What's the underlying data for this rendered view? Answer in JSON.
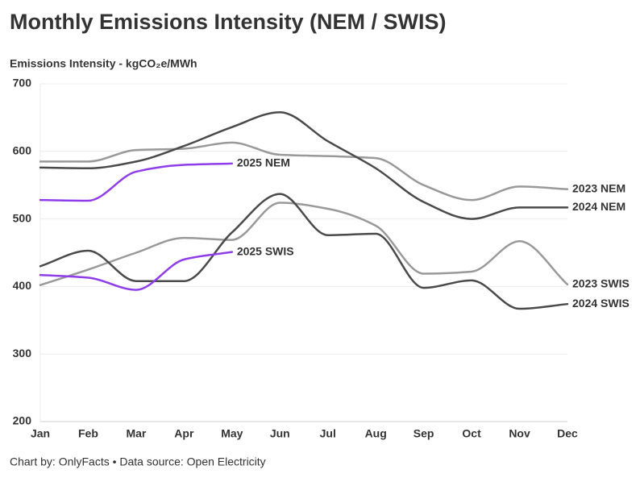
{
  "chart_data": {
    "type": "line",
    "title": "Monthly Emissions Intensity (NEM / SWIS)",
    "y_axis_label": "Emissions Intensity - kgCO₂e/MWh",
    "footer": "Chart by: OnlyFacts • Data source: Open Electricity",
    "categories": [
      "Jan",
      "Feb",
      "Mar",
      "Apr",
      "May",
      "Jun",
      "Jul",
      "Aug",
      "Sep",
      "Oct",
      "Nov",
      "Dec"
    ],
    "ylim": [
      200,
      700
    ],
    "yticks": [
      200,
      300,
      400,
      500,
      600,
      700
    ],
    "grid": true,
    "series": [
      {
        "name": "2023 NEM",
        "color": "#999999",
        "values": [
          585,
          585,
          602,
          604,
          613,
          595,
          593,
          590,
          550,
          528,
          548,
          544
        ]
      },
      {
        "name": "2024 NEM",
        "color": "#4a4a4a",
        "values": [
          576,
          575,
          585,
          608,
          636,
          658,
          615,
          575,
          525,
          500,
          517,
          517
        ]
      },
      {
        "name": "2025 NEM",
        "color": "#8f3ceb",
        "values": [
          528,
          527,
          570,
          580,
          582,
          null,
          null,
          null,
          null,
          null,
          null,
          null
        ]
      },
      {
        "name": "2023 SWIS",
        "color": "#999999",
        "values": [
          402,
          425,
          450,
          472,
          469,
          524,
          515,
          490,
          419,
          422,
          467,
          403
        ]
      },
      {
        "name": "2024 SWIS",
        "color": "#4a4a4a",
        "values": [
          430,
          453,
          408,
          408,
          480,
          537,
          476,
          478,
          398,
          409,
          367,
          374
        ]
      },
      {
        "name": "2025 SWIS",
        "color": "#8f3ceb",
        "values": [
          417,
          413,
          395,
          440,
          451,
          null,
          null,
          null,
          null,
          null,
          null,
          null
        ]
      }
    ]
  }
}
